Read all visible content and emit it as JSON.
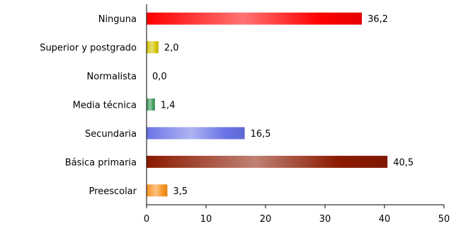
{
  "chart_data": {
    "type": "bar",
    "orientation": "horizontal",
    "categories": [
      "Ninguna",
      "Superior y postgrado",
      "Normalista",
      "Media técnica",
      "Secundaria",
      "Básica primaria",
      "Preescolar"
    ],
    "values": [
      36.2,
      2.0,
      0.0,
      1.4,
      16.5,
      40.5,
      3.5
    ],
    "value_labels": [
      "36,2",
      "2,0",
      "0,0",
      "1,4",
      "16,5",
      "40,5",
      "3,5"
    ],
    "colors": [
      "#ff0000",
      "#d4c400",
      "#888888",
      "#3a9a5a",
      "#6b74e8",
      "#8b1a00",
      "#f7921e"
    ],
    "xlim": [
      0,
      50
    ],
    "xticks": [
      0,
      10,
      20,
      30,
      40,
      50
    ],
    "title": "",
    "xlabel": "",
    "ylabel": "",
    "grid": false,
    "legend": "none"
  }
}
